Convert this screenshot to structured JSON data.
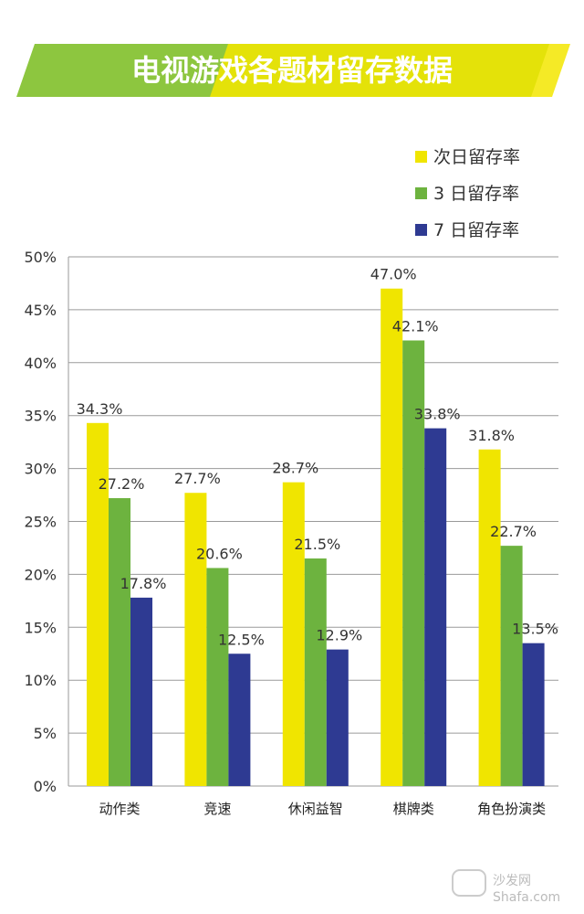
{
  "chart_data": {
    "type": "bar",
    "title": "电视游戏各题材留存数据",
    "categories": [
      "动作类",
      "竞速",
      "休闲益智",
      "棋牌类",
      "角色扮演类"
    ],
    "series": [
      {
        "name": "次日留存率",
        "values": [
          34.3,
          27.7,
          28.7,
          47.0,
          31.8
        ],
        "labels": [
          "34.3%",
          "27.7%",
          "28.7%",
          "47.0%",
          "31.8%"
        ],
        "color": "#F0E500"
      },
      {
        "name": "3 日留存率",
        "values": [
          27.2,
          20.6,
          21.5,
          42.1,
          22.7
        ],
        "labels": [
          "27.2%",
          "20.6%",
          "21.5%",
          "42.1%",
          "22.7%"
        ],
        "color": "#6DB33F"
      },
      {
        "name": "7 日留存率",
        "values": [
          17.8,
          12.5,
          12.9,
          33.8,
          13.5
        ],
        "labels": [
          "17.8%",
          "12.5%",
          "12.9%",
          "33.8%",
          "13.5%"
        ],
        "color": "#2E3A92"
      }
    ],
    "yticks": [
      "0%",
      "5%",
      "10%",
      "15%",
      "20%",
      "25%",
      "30%",
      "35%",
      "40%",
      "45%",
      "50%"
    ],
    "ylim": [
      0,
      50
    ],
    "legend_position": "top-right",
    "grid": true,
    "banner_colors": {
      "green": "#8DC63F",
      "yellow": "#F3E600"
    }
  },
  "watermark": {
    "cn": "沙发网",
    "en": "Shafa.com"
  }
}
